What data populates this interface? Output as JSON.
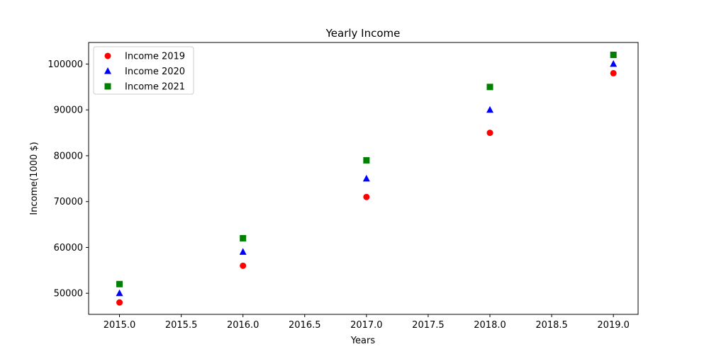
{
  "chart_data": {
    "type": "scatter",
    "title": "Yearly Income",
    "xlabel": "Years",
    "ylabel": "Income(1000 $)",
    "x": [
      2015,
      2016,
      2017,
      2018,
      2019
    ],
    "xlim": [
      2014.75,
      2019.2
    ],
    "ylim": [
      45400,
      104700
    ],
    "xticks": [
      "2015.0",
      "2015.5",
      "2016.0",
      "2016.5",
      "2017.0",
      "2017.5",
      "2018.0",
      "2018.5",
      "2019.0"
    ],
    "yticks": [
      "50000",
      "60000",
      "70000",
      "80000",
      "90000",
      "100000"
    ],
    "grid": false,
    "legend_position": "top-left",
    "series": [
      {
        "name": "Income 2019",
        "marker": "circle",
        "color": "#ff0000",
        "values": [
          48000,
          56000,
          71000,
          85000,
          98000
        ]
      },
      {
        "name": "Income 2020",
        "marker": "triangle",
        "color": "#0000ff",
        "values": [
          50000,
          59000,
          75000,
          90000,
          100000
        ]
      },
      {
        "name": "Income 2021",
        "marker": "square",
        "color": "#008000",
        "values": [
          52000,
          62000,
          79000,
          95000,
          102000
        ]
      }
    ]
  }
}
